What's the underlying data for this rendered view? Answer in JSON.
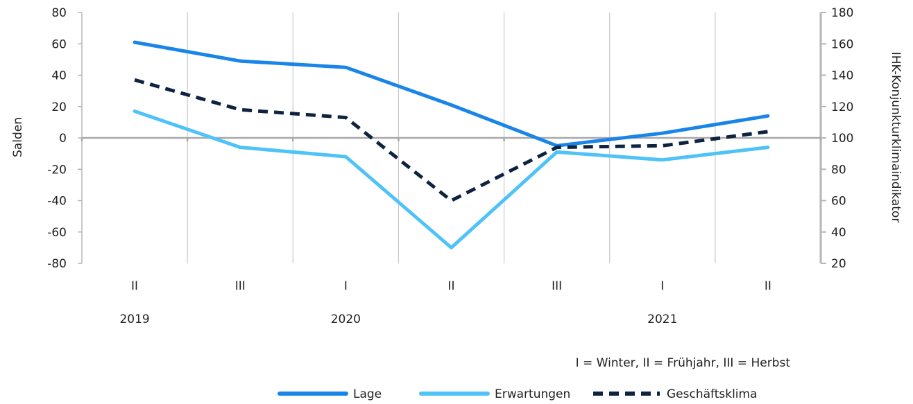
{
  "chart_data": {
    "type": "line",
    "categories": [
      "II",
      "III",
      "I",
      "II",
      "III",
      "I",
      "II"
    ],
    "years": [
      {
        "label": "2019",
        "at_index": 0
      },
      {
        "label": "2020",
        "at_index": 2
      },
      {
        "label": "2021",
        "at_index": 5
      }
    ],
    "y_left": {
      "label": "Salden",
      "lim": [
        -80,
        80
      ],
      "ticks": [
        80,
        60,
        40,
        20,
        0,
        -20,
        -40,
        -60,
        -80
      ],
      "tick_labels": [
        "80",
        "60",
        "40",
        "20",
        "0",
        "-20",
        "-40",
        "-60",
        "-80"
      ]
    },
    "y_right": {
      "label": "IHK-Konjunkturklimaindikator",
      "lim": [
        20,
        180
      ],
      "ticks": [
        180,
        160,
        140,
        120,
        100,
        80,
        60,
        40,
        20
      ],
      "tick_labels": [
        "180",
        "160",
        "140",
        "120",
        "100",
        "80",
        "60",
        "40",
        "20"
      ]
    },
    "series": [
      {
        "name": "Lage",
        "axis": "left",
        "color": "#1a85e8",
        "dash": "solid",
        "values": [
          61,
          49,
          45,
          21,
          -5,
          3,
          14
        ]
      },
      {
        "name": "Erwartungen",
        "axis": "left",
        "color": "#4fc3f7",
        "dash": "solid",
        "values": [
          17,
          -6,
          -12,
          -70,
          -9,
          -14,
          -6
        ]
      },
      {
        "name": "Geschäftsklima",
        "axis": "right",
        "color": "#0d2340",
        "dash": "dashed",
        "values": [
          137,
          118,
          113,
          60,
          94,
          95,
          104
        ]
      }
    ],
    "grid": "vertical",
    "zero_line": true,
    "note": "I = Winter, II = Frühjahr, III = Herbst",
    "legend_position": "bottom-right"
  }
}
